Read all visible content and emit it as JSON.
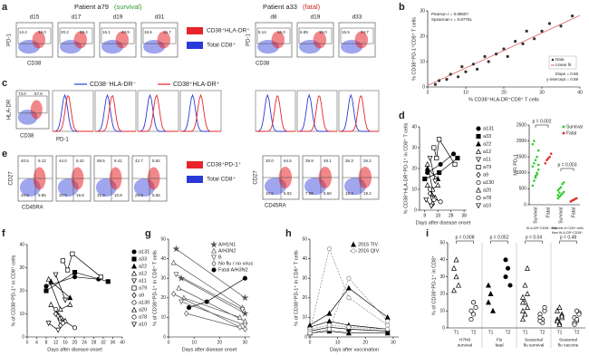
{
  "panel_labels": [
    "a",
    "b",
    "c",
    "d",
    "e",
    "f",
    "g",
    "h",
    "i"
  ],
  "a": {
    "left_patient": "Patient a79",
    "left_outcome": "(survival)",
    "right_patient": "Patient a33",
    "right_outcome": "(fatal)",
    "left_days": [
      "d15",
      "d17",
      "d19",
      "d31"
    ],
    "right_days": [
      "d8",
      "d19",
      "d33"
    ],
    "left_gates": [
      [
        "14.4",
        "33.0"
      ],
      [
        "20.2",
        "29.4"
      ],
      [
        "16.1",
        "43.9"
      ],
      [
        "18.6",
        "15.7"
      ]
    ],
    "right_gates": [
      [
        "8.14",
        "16.0"
      ],
      [
        "6.89",
        "19.0"
      ],
      [
        "15.5",
        "24.7"
      ]
    ],
    "y_label": "PD-1",
    "x_label": "CD38",
    "legend": [
      {
        "name": "CD38⁺HLA-DR⁺",
        "color": "#e8242a"
      },
      {
        "name": "Total CD8⁺",
        "color": "#2a3ad8"
      }
    ]
  },
  "b": {
    "y_label": "% CD38⁺PD-1⁺CD8⁺ T cells",
    "x_label": "% CD38⁺HLA-DR⁺CD8⁺ T cells",
    "xlim": [
      0,
      40
    ],
    "ylim": [
      0,
      30
    ],
    "xticks": [
      0,
      10,
      20,
      30,
      40
    ],
    "yticks": [
      0,
      10,
      20,
      30
    ],
    "color": "#333333",
    "fit_color": "#e06060",
    "annotations": [
      "Pearson r = 0.89607",
      "Spearman r = 0.87761"
    ],
    "slope": {
      "value": 0.69,
      "label": "Slope = 0.69"
    },
    "intercept": {
      "value": 0.59,
      "label": "y-intercept = 0.59"
    },
    "legend": [
      "Data",
      "Linear fit"
    ],
    "x": [
      2,
      3,
      5,
      6,
      8,
      9,
      10,
      12,
      13,
      15,
      16,
      18,
      20,
      21,
      23,
      25,
      26,
      28,
      30,
      32,
      35,
      38
    ],
    "values": [
      1,
      2.5,
      3,
      5,
      4,
      8,
      6,
      9,
      7,
      12,
      10,
      13,
      15,
      12,
      18,
      17,
      22,
      19,
      22,
      25,
      24,
      28
    ]
  },
  "c": {
    "legend": [
      {
        "name": "CD38⁻HLA-DR⁻",
        "color": "#2a3ad8"
      },
      {
        "name": "CD38⁺HLA-DR⁺",
        "color": "#e8242a"
      }
    ],
    "gates": [
      "73.0",
      "57.6"
    ],
    "y_label": "HLA-DR",
    "x_label": "CD38",
    "hist_label": "PD-1"
  },
  "d_left": {
    "type": "line",
    "y_label": "% CD38⁺HLA-DR⁺PD-1⁺ in CD8⁺ T cells",
    "x_label": "Days after disease onset",
    "xlim": [
      4,
      40
    ],
    "ylim": [
      0,
      40
    ],
    "xticks": [
      8,
      18,
      28,
      38
    ],
    "yticks": [
      0,
      10,
      20,
      30,
      40
    ],
    "series": [
      {
        "name": "a131",
        "color": "#000000",
        "marker": "circle",
        "x": [
          10,
          20,
          30
        ],
        "values": [
          18,
          22,
          27
        ]
      },
      {
        "name": "a33",
        "color": "#000000",
        "marker": "square",
        "x": [
          8,
          19,
          33
        ],
        "values": [
          15,
          18,
          25
        ]
      },
      {
        "name": "a22",
        "color": "#000000",
        "marker": "triangle",
        "x": [
          10,
          18
        ],
        "values": [
          20,
          15
        ]
      },
      {
        "name": "a12",
        "color": "#000000",
        "marker": "triangle-open",
        "x": [
          10,
          14,
          18
        ],
        "values": [
          22,
          10,
          12
        ]
      },
      {
        "name": "a11",
        "color": "#000000",
        "marker": "triangle-down-open",
        "x": [
          12,
          16
        ],
        "values": [
          25,
          14
        ]
      },
      {
        "name": "a79",
        "color": "#000000",
        "marker": "square-open",
        "x": [
          15,
          17,
          19,
          31
        ],
        "values": [
          30,
          25,
          34,
          22
        ]
      },
      {
        "name": "a9",
        "color": "#000000",
        "marker": "diamond-open",
        "x": [
          12,
          14
        ],
        "values": [
          8,
          3
        ]
      },
      {
        "name": "a130",
        "color": "#000000",
        "marker": "circle-open",
        "x": [
          14,
          20
        ],
        "values": [
          6,
          4
        ]
      },
      {
        "name": "a20",
        "color": "#000000",
        "marker": "triangle-open",
        "x": [
          10,
          16
        ],
        "values": [
          12,
          6
        ]
      },
      {
        "name": "a78",
        "color": "#000000",
        "marker": "circle-open",
        "x": [
          12,
          15
        ],
        "values": [
          10,
          5
        ]
      },
      {
        "name": "a10",
        "color": "#000000",
        "marker": "triangle-down-open",
        "x": [
          9,
          13
        ],
        "values": [
          5,
          2
        ]
      }
    ]
  },
  "d_right": {
    "y_label": "MFI PD-1",
    "ylim": [
      0,
      2500
    ],
    "yticks": [
      0,
      500,
      1000,
      1500,
      2000,
      2500
    ],
    "legend": [
      {
        "name": "Survival",
        "color": "#33cc33"
      },
      {
        "name": "Fatal",
        "color": "#e03030"
      }
    ],
    "columns": [
      {
        "name": "Survival",
        "color": "#33cc33",
        "values": [
          600,
          750,
          900,
          1000,
          1100,
          1200,
          1300,
          1400,
          1500,
          1700,
          1900,
          2000,
          850,
          950,
          1250
        ]
      },
      {
        "name": "Fatal",
        "color": "#e03030",
        "values": [
          1300,
          1400,
          1450,
          1500,
          1600
        ]
      },
      {
        "name": "Survival",
        "color": "#33cc33",
        "values": [
          200,
          250,
          300,
          350,
          400,
          450,
          500,
          550,
          650,
          700,
          300,
          380
        ]
      },
      {
        "name": "Fatal",
        "color": "#e03030",
        "values": [
          100,
          130,
          150,
          180,
          200
        ]
      }
    ],
    "p_values": [
      "p = 0.002",
      "p = 0.003"
    ],
    "captions": [
      [
        "HLA-DR⁺CD38⁺ cells"
      ],
      [
        "The rest of CD8+ cells",
        "than HLA-DR⁺CD38⁺"
      ]
    ]
  },
  "e": {
    "left_gates": [
      [
        "40.5",
        "9.12",
        "40.5",
        "9.95"
      ],
      [
        "44.0",
        "9.42",
        "30.9",
        "19.8"
      ],
      [
        "69.5",
        "9.41",
        "31.9",
        "10.8"
      ],
      [
        "42.7",
        "5.92",
        "28.8",
        "5.56"
      ]
    ],
    "right_gates": [
      [
        "20.0",
        "64.5",
        "10.5",
        "5.02"
      ],
      [
        "39.9",
        "48.1",
        "7.09",
        "5.60"
      ],
      [
        "36.3",
        "26.2",
        "18.3",
        "19.2"
      ]
    ],
    "legend": [
      {
        "name": "CD38⁺PD-1⁺",
        "color": "#e8242a"
      },
      {
        "name": "Total CD8⁺",
        "color": "#2a3ad8"
      }
    ],
    "y_label": "CD27",
    "x_label": "CD45RA"
  },
  "f": {
    "type": "line",
    "y_label": "% of CD38⁺PD-1⁺ in CD8⁺ cells",
    "x_label": "Days after disease onset",
    "xlim": [
      0,
      40
    ],
    "ylim": [
      0,
      40
    ],
    "xticks": [
      0,
      4,
      8,
      12,
      16,
      20,
      24,
      28,
      32,
      36,
      40
    ],
    "yticks": [
      0,
      10,
      20,
      30,
      40
    ],
    "series": [
      {
        "name": "a131",
        "color": "#000000",
        "marker": "circle",
        "x": [
          8,
          20,
          30
        ],
        "values": [
          22,
          26,
          25
        ]
      },
      {
        "name": "a33",
        "color": "#000000",
        "marker": "square",
        "x": [
          8,
          20,
          34
        ],
        "values": [
          20,
          28,
          24
        ]
      },
      {
        "name": "a22",
        "color": "#000000",
        "marker": "triangle",
        "x": [
          10,
          18
        ],
        "values": [
          24,
          17
        ]
      },
      {
        "name": "a12",
        "color": "#000000",
        "marker": "triangle-open",
        "x": [
          9,
          14,
          18
        ],
        "values": [
          25,
          12,
          14
        ]
      },
      {
        "name": "a11",
        "color": "#000000",
        "marker": "triangle-down-open",
        "x": [
          12,
          16
        ],
        "values": [
          27,
          16
        ]
      },
      {
        "name": "a79",
        "color": "#000000",
        "marker": "square-open",
        "x": [
          15,
          17,
          19,
          31
        ],
        "values": [
          33,
          29,
          36,
          26
        ]
      },
      {
        "name": "a9",
        "color": "#000000",
        "marker": "diamond-open",
        "x": [
          12,
          14
        ],
        "values": [
          10,
          5
        ]
      },
      {
        "name": "a130",
        "color": "#000000",
        "marker": "circle-open",
        "x": [
          14,
          20
        ],
        "values": [
          8,
          4
        ]
      },
      {
        "name": "a20",
        "color": "#000000",
        "marker": "triangle-open",
        "x": [
          10,
          16
        ],
        "values": [
          14,
          7
        ]
      },
      {
        "name": "a78",
        "color": "#000000",
        "marker": "circle-open",
        "x": [
          12,
          15
        ],
        "values": [
          12,
          6
        ]
      },
      {
        "name": "a10",
        "color": "#000000",
        "marker": "triangle-down-open",
        "x": [
          9,
          13
        ],
        "values": [
          6,
          3
        ]
      }
    ]
  },
  "g": {
    "type": "line",
    "y_label": "% of CD38⁺PD-1⁺ in CD8⁺ T cells",
    "x_label": "Days after disease onset",
    "xlim": [
      0,
      32
    ],
    "ylim": [
      0,
      50
    ],
    "xticks": [
      0,
      10,
      20,
      30
    ],
    "yticks": [
      0,
      10,
      20,
      30,
      40,
      50
    ],
    "series": [
      {
        "name": "A/H1N1",
        "color": "#555555",
        "marker": "star",
        "x": [
          3,
          30,
          null,
          5,
          30
        ],
        "values": [
          45,
          20,
          null,
          30,
          12
        ]
      },
      {
        "name": "A/H3N2",
        "color": "#555555",
        "marker": "triangle-open",
        "x": [
          2,
          29,
          null,
          4,
          30,
          null,
          6,
          28
        ],
        "values": [
          38,
          15,
          null,
          25,
          8,
          null,
          20,
          10
        ]
      },
      {
        "name": "B",
        "color": "#555555",
        "marker": "triangle-down-open",
        "x": [
          3,
          29,
          null,
          5,
          30
        ],
        "values": [
          32,
          14,
          null,
          18,
          6
        ]
      },
      {
        "name": "No flu / no virus",
        "color": "#555555",
        "marker": "diamond-open",
        "x": [
          2,
          28,
          null,
          7,
          30
        ],
        "values": [
          22,
          5,
          null,
          12,
          4
        ]
      },
      {
        "name": "Fatal A/H3N2",
        "color": "#000000",
        "marker": "circle",
        "x": [
          8,
          15,
          30
        ],
        "values": [
          15,
          18,
          30
        ]
      }
    ]
  },
  "h": {
    "type": "line",
    "y_label": "% of CD38⁺PD-1⁺ in CD8⁺ T cells",
    "x_label": "Days after vaccination",
    "xlim": [
      0,
      32
    ],
    "ylim": [
      0,
      50
    ],
    "xticks": [
      0,
      10,
      20,
      30
    ],
    "yticks": [
      0,
      10,
      20,
      30,
      40,
      50
    ],
    "series": [
      {
        "name": "2015 TIV",
        "color": "#000000",
        "marker": "triangle",
        "x": [
          0,
          7,
          14,
          28,
          null,
          0,
          7,
          14,
          28,
          null,
          0,
          7,
          14,
          28,
          null,
          0,
          7,
          14,
          28
        ],
        "values": [
          3,
          5,
          4,
          3,
          null,
          5,
          8,
          6,
          4,
          null,
          2,
          3,
          2,
          2,
          null,
          6,
          12,
          25,
          10
        ]
      },
      {
        "name": "2016 QIV",
        "color": "#888888",
        "dash": true,
        "marker": "circle-open",
        "x": [
          0,
          7,
          14,
          28,
          null,
          0,
          7,
          14,
          28,
          null,
          0,
          7,
          14,
          28
        ],
        "values": [
          4,
          6,
          5,
          4,
          null,
          3,
          45,
          20,
          6,
          null,
          2,
          4,
          30,
          8
        ]
      }
    ]
  },
  "i": {
    "y_label": "% of CD38⁺PD-1⁺ in CD8⁺",
    "ylim": [
      0,
      50
    ],
    "yticks": [
      0,
      10,
      20,
      30,
      40,
      50
    ],
    "columns": [
      {
        "name": "T1",
        "marker": "triangle-open",
        "values": [
          35,
          30,
          25,
          22,
          40
        ]
      },
      {
        "name": "T2",
        "marker": "circle-open",
        "values": [
          10,
          8,
          12,
          5,
          15
        ]
      },
      {
        "name": "T1",
        "marker": "triangle",
        "values": [
          15,
          20,
          10,
          25
        ]
      },
      {
        "name": "T2",
        "marker": "circle",
        "values": [
          30,
          35,
          25,
          40
        ]
      },
      {
        "name": "T1",
        "marker": "triangle-open",
        "values": [
          18,
          15,
          12,
          10,
          8,
          20,
          5,
          25,
          35,
          15
        ]
      },
      {
        "name": "T2",
        "marker": "circle-open",
        "values": [
          8,
          5,
          10,
          6,
          3,
          12,
          4
        ]
      },
      {
        "name": "T1",
        "marker": "triangle-open",
        "values": [
          5,
          3,
          8,
          10,
          2,
          6,
          4,
          12,
          7
        ]
      },
      {
        "name": "T2",
        "marker": "circle-open",
        "values": [
          6,
          4,
          9,
          3,
          5,
          8,
          2,
          10
        ]
      }
    ],
    "groups": [
      {
        "name": [
          "H7N9",
          "survival"
        ],
        "p": "p = 0.008"
      },
      {
        "name": [
          "Flu",
          "fatal"
        ],
        "p": "p = 0.052"
      },
      {
        "name": [
          "Seasonal",
          "flu survival"
        ],
        "p": "p = 0.04"
      },
      {
        "name": [
          "Seasonal",
          "flu vaccine"
        ],
        "p": "p = 0.48"
      }
    ]
  }
}
